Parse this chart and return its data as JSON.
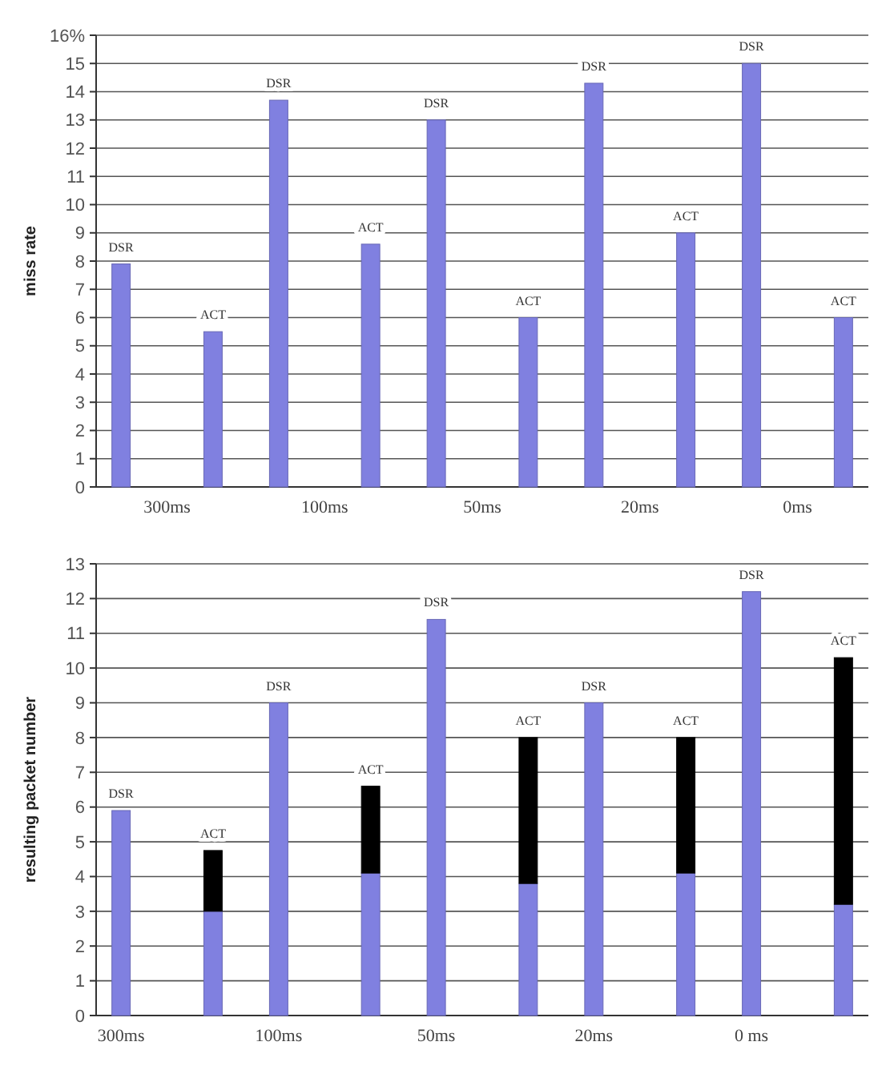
{
  "chart_data": [
    {
      "type": "bar",
      "ylabel": "miss rate",
      "categories": [
        "300ms",
        "100ms",
        "50ms",
        "20ms",
        "0ms"
      ],
      "series": [
        {
          "name": "DSR",
          "color": "#8080e0",
          "values": [
            7.9,
            13.7,
            13.0,
            14.3,
            15.0
          ]
        },
        {
          "name": "ACT",
          "color": "#8080e0",
          "values": [
            5.5,
            8.6,
            6.0,
            9.0,
            6.0
          ]
        }
      ],
      "ylim": [
        0,
        16
      ],
      "yticks": [
        0,
        1,
        2,
        3,
        4,
        5,
        6,
        7,
        8,
        9,
        10,
        11,
        12,
        13,
        14,
        15,
        {
          "value": 16,
          "label": "16%"
        }
      ],
      "grid": "y"
    },
    {
      "type": "bar",
      "ylabel": "resulting packet number",
      "categories": [
        "300ms",
        null,
        "100ms",
        null,
        "50ms",
        null,
        "20ms",
        null,
        "0 ms",
        null
      ],
      "stacked": true,
      "series": [
        {
          "name": "DSR",
          "color": "#8080e0",
          "values": [
            5.9,
            null,
            9.0,
            null,
            11.4,
            null,
            9.0,
            null,
            12.2,
            null
          ]
        },
        {
          "name": "ACT",
          "color": "#8080e0",
          "values": [
            null,
            3.0,
            null,
            4.1,
            null,
            3.8,
            null,
            4.1,
            null,
            3.2
          ]
        },
        {
          "color": "#000000",
          "values": [
            null,
            1.75,
            null,
            2.5,
            null,
            4.2,
            null,
            3.9,
            null,
            7.1
          ]
        }
      ],
      "ylim": [
        0,
        13
      ],
      "yticks": [
        0,
        1,
        2,
        3,
        4,
        5,
        6,
        7,
        8,
        9,
        10,
        11,
        12,
        13
      ],
      "grid": "y"
    }
  ]
}
